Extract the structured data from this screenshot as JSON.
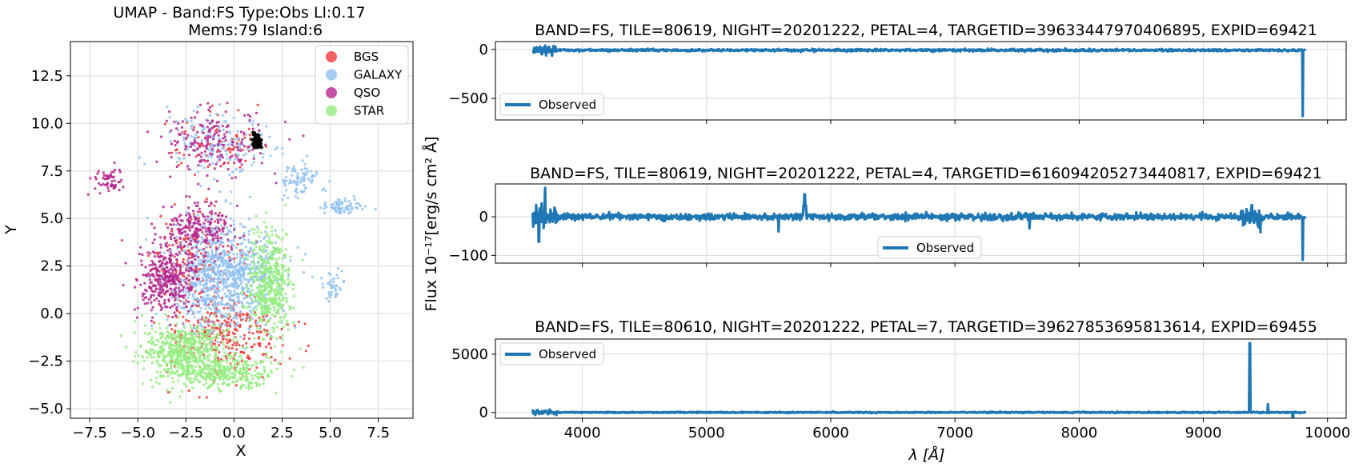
{
  "chart_data": [
    {
      "type": "scatter",
      "title": "UMAP  -  Band:FS Type:Obs Ll:0.17",
      "subtitle": "Mems:79 Island:6",
      "xlabel": "X",
      "ylabel": "Y",
      "xlim": [
        -8.5,
        9.3
      ],
      "ylim": [
        -5.5,
        14.3
      ],
      "xticks": [
        -7.5,
        -5.0,
        -2.5,
        0.0,
        2.5,
        5.0,
        7.5
      ],
      "xtick_labels": [
        "−7.5",
        "−5.0",
        "−2.5",
        "0.0",
        "2.5",
        "5.0",
        "7.5"
      ],
      "yticks": [
        -5.0,
        -2.5,
        0.0,
        2.5,
        5.0,
        7.5,
        10.0,
        12.5
      ],
      "ytick_labels": [
        "−5.0",
        "−2.5",
        "0.0",
        "2.5",
        "5.0",
        "7.5",
        "10.0",
        "12.5"
      ],
      "grid": true,
      "legend_position": "top-right",
      "series": [
        {
          "name": "BGS",
          "color": "#f03b3b",
          "clusters": [
            {
              "cx": -0.5,
              "cy": -1.0,
              "sx": 2.8,
              "sy": 2.0,
              "n": 320
            },
            {
              "cx": -2.0,
              "cy": 3.0,
              "sx": 2.0,
              "sy": 2.2,
              "n": 160
            },
            {
              "cx": -1.0,
              "cy": 9.0,
              "sx": 2.2,
              "sy": 1.4,
              "n": 80
            }
          ]
        },
        {
          "name": "GALAXY",
          "color": "#8ec1f2",
          "clusters": [
            {
              "cx": -0.5,
              "cy": 2.0,
              "sx": 2.6,
              "sy": 2.4,
              "n": 900
            },
            {
              "cx": -1.0,
              "cy": 9.0,
              "sx": 2.4,
              "sy": 1.5,
              "n": 160
            },
            {
              "cx": 3.5,
              "cy": 7.0,
              "sx": 1.0,
              "sy": 0.8,
              "n": 80
            },
            {
              "cx": 5.6,
              "cy": 5.6,
              "sx": 0.9,
              "sy": 0.3,
              "n": 70
            },
            {
              "cx": 5.2,
              "cy": 1.5,
              "sx": 0.5,
              "sy": 0.6,
              "n": 40
            }
          ]
        },
        {
          "name": "QSO",
          "color": "#b5268e",
          "clusters": [
            {
              "cx": -3.5,
              "cy": 1.8,
              "sx": 1.4,
              "sy": 1.5,
              "n": 360
            },
            {
              "cx": -1.8,
              "cy": 4.5,
              "sx": 1.8,
              "sy": 1.3,
              "n": 220
            },
            {
              "cx": -1.0,
              "cy": 9.0,
              "sx": 2.6,
              "sy": 1.6,
              "n": 180
            },
            {
              "cx": -6.5,
              "cy": 7.0,
              "sx": 0.7,
              "sy": 0.6,
              "n": 60
            }
          ]
        },
        {
          "name": "STAR",
          "color": "#94ec80",
          "clusters": [
            {
              "cx": -2.5,
              "cy": -2.0,
              "sx": 2.0,
              "sy": 1.3,
              "n": 600
            },
            {
              "cx": 1.8,
              "cy": 1.5,
              "sx": 1.0,
              "sy": 2.5,
              "n": 500
            },
            {
              "cx": -0.5,
              "cy": -3.2,
              "sx": 2.4,
              "sy": 0.8,
              "n": 300
            }
          ]
        }
      ],
      "highlight": {
        "name": "Island:6",
        "color": "#000000",
        "cx": 1.2,
        "cy": 9.0,
        "sx": 0.2,
        "sy": 0.3,
        "n": 79
      }
    },
    {
      "type": "line",
      "title": "BAND=FS, TILE=80619, NIGHT=20201222, PETAL=4, TARGETID=39633447970406895, EXPID=69421",
      "series_name": "Observed",
      "color": "#1f77b4",
      "xlim": [
        3300,
        10150
      ],
      "ylim": [
        -720,
        80
      ],
      "yticks": [
        0,
        -500
      ],
      "ytick_labels": [
        "0",
        "−500"
      ],
      "legend_position": "lower-left",
      "wavelength_range": [
        3600,
        9824
      ],
      "baseline": -8,
      "noise": 6,
      "features": [
        {
          "x": 9800,
          "y": -680
        },
        {
          "x": 3700,
          "y": 40
        },
        {
          "x": 3640,
          "y": -25
        }
      ]
    },
    {
      "type": "line",
      "title": "BAND=FS, TILE=80619, NIGHT=20201222, PETAL=4, TARGETID=616094205273440817, EXPID=69421",
      "series_name": "Observed",
      "color": "#1f77b4",
      "xlim": [
        3300,
        10150
      ],
      "ylim": [
        -120,
        85
      ],
      "yticks": [
        0,
        -100
      ],
      "ytick_labels": [
        "0",
        "−100"
      ],
      "legend_position": "lower-center",
      "wavelength_range": [
        3600,
        9824
      ],
      "baseline": 0,
      "noise": 4,
      "features": [
        {
          "x": 5790,
          "y": 58
        },
        {
          "x": 5580,
          "y": -38
        },
        {
          "x": 3700,
          "y": 75
        },
        {
          "x": 3650,
          "y": -65
        },
        {
          "x": 9800,
          "y": -112
        },
        {
          "x": 9460,
          "y": -40
        },
        {
          "x": 9390,
          "y": 30
        },
        {
          "x": 7600,
          "y": -30
        }
      ]
    },
    {
      "type": "line",
      "title": "BAND=FS, TILE=80610, NIGHT=20201222, PETAL=7, TARGETID=39627853695813614, EXPID=69455",
      "series_name": "Observed",
      "color": "#1f77b4",
      "xlabel": "λ [Å]",
      "xlim": [
        3300,
        10150
      ],
      "ylim": [
        -500,
        6300
      ],
      "xticks": [
        4000,
        5000,
        6000,
        7000,
        8000,
        9000,
        10000
      ],
      "xtick_labels": [
        "4000",
        "5000",
        "6000",
        "7000",
        "8000",
        "9000",
        "10000"
      ],
      "yticks": [
        0,
        5000
      ],
      "ytick_labels": [
        "0",
        "5000"
      ],
      "legend_position": "top-left",
      "wavelength_range": [
        3600,
        9824
      ],
      "baseline": 0,
      "noise": 25,
      "features": [
        {
          "x": 9375,
          "y": 5950
        },
        {
          "x": 9520,
          "y": 700
        },
        {
          "x": 9720,
          "y": -1550
        }
      ]
    }
  ],
  "shared_ylabel": "Flux 10⁻¹⁷[erg/s cm² Å]"
}
